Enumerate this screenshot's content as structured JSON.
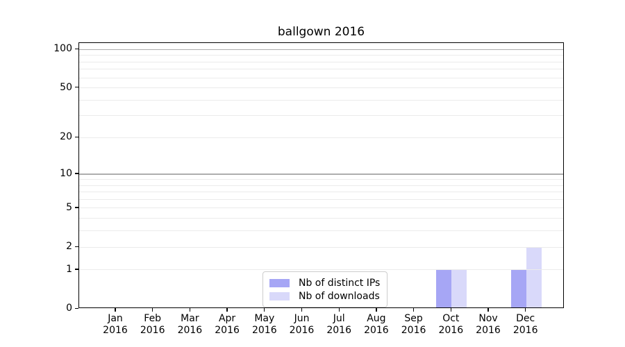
{
  "chart_data": {
    "type": "bar",
    "title": "ballgown 2016",
    "x_tick_months": [
      "Jan",
      "Feb",
      "Mar",
      "Apr",
      "May",
      "Jun",
      "Jul",
      "Aug",
      "Sep",
      "Oct",
      "Nov",
      "Dec"
    ],
    "x_tick_year": "2016",
    "series": [
      {
        "name": "Nb of distinct IPs",
        "color": "#a6a6f5",
        "values": [
          0,
          0,
          0,
          0,
          0,
          0,
          0,
          0,
          0,
          1,
          0,
          1
        ]
      },
      {
        "name": "Nb of downloads",
        "color": "#d9d9fa",
        "values": [
          0,
          0,
          0,
          0,
          0,
          0,
          0,
          0,
          0,
          1,
          0,
          2
        ]
      }
    ],
    "y_axis": {
      "scale": "log1p",
      "tick_values": [
        0,
        1,
        2,
        5,
        10,
        20,
        50,
        100
      ],
      "minor_gridlines": [
        1,
        2,
        3,
        4,
        5,
        6,
        7,
        8,
        9,
        20,
        30,
        40,
        50,
        60,
        70,
        80,
        90
      ],
      "major_gridlines": [
        10,
        100
      ],
      "top_value": 112
    },
    "xlabel": "",
    "ylabel": "",
    "grid": "on",
    "legend_position": "lower center"
  },
  "colors": {
    "axis": "#000000",
    "minor_grid": "#ebebeb",
    "major_grid": "#adadad",
    "legend_border": "#cccccc",
    "background": "#ffffff"
  }
}
